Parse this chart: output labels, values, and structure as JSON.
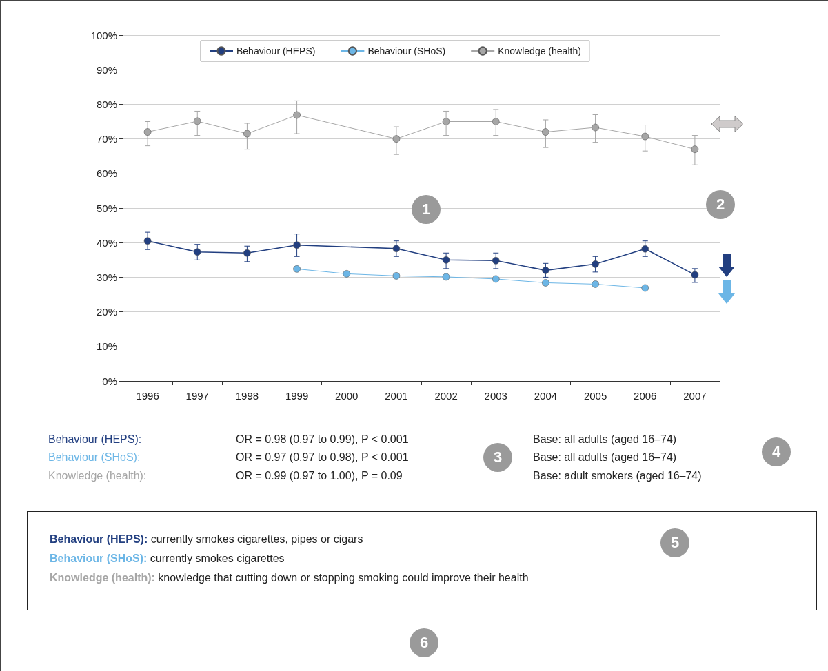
{
  "chart_data": {
    "type": "line",
    "categories": [
      "1996",
      "1997",
      "1998",
      "1999",
      "2000",
      "2001",
      "2002",
      "2003",
      "2004",
      "2005",
      "2006",
      "2007"
    ],
    "series": [
      {
        "name": "Behaviour (HEPS)",
        "color": "#223f80",
        "values": [
          40.5,
          37.3,
          37,
          39.3,
          null,
          38.3,
          35,
          34.8,
          32,
          33.8,
          38.2,
          30.7
        ],
        "errors": [
          [
            38,
            43
          ],
          [
            35,
            39.5
          ],
          [
            34.5,
            39
          ],
          [
            36,
            42.5
          ],
          null,
          [
            36,
            40.5
          ],
          [
            32.5,
            37
          ],
          [
            32.5,
            37
          ],
          [
            30,
            34
          ],
          [
            31.5,
            36
          ],
          [
            36,
            40.5
          ],
          [
            28.5,
            32.5
          ]
        ]
      },
      {
        "name": "Behaviour (SHoS)",
        "color": "#6cb6e6",
        "values": [
          null,
          null,
          null,
          32.4,
          31,
          30.4,
          30.1,
          29.5,
          28.4,
          28,
          26.9,
          null
        ]
      },
      {
        "name": "Knowledge (health)",
        "color": "#a6a6a6",
        "values": [
          72,
          75.1,
          71.5,
          76.9,
          null,
          70,
          75,
          75,
          72,
          73.3,
          70.7,
          67
        ],
        "errors": [
          [
            68,
            75
          ],
          [
            71,
            78
          ],
          [
            67,
            74.5
          ],
          [
            71.5,
            81
          ],
          null,
          [
            65.5,
            73.5
          ],
          [
            71,
            78
          ],
          [
            71,
            78.5
          ],
          [
            67.5,
            75.5
          ],
          [
            69,
            77
          ],
          [
            66.5,
            74
          ],
          [
            62.5,
            71
          ]
        ]
      }
    ],
    "ylim": [
      0,
      100
    ],
    "yticks": [
      {
        "value": 0,
        "label": "0%"
      },
      {
        "value": 10,
        "label": "10%"
      },
      {
        "value": 20,
        "label": "20%"
      },
      {
        "value": 30,
        "label": "30%"
      },
      {
        "value": 40,
        "label": "40%"
      },
      {
        "value": 50,
        "label": "50%"
      },
      {
        "value": 60,
        "label": "60%"
      },
      {
        "value": 70,
        "label": "70%"
      },
      {
        "value": 80,
        "label": "80%"
      },
      {
        "value": 90,
        "label": "90%"
      },
      {
        "value": 100,
        "label": "100%"
      }
    ],
    "grid": "y",
    "legend": "top",
    "marker": "circle",
    "line_style": "solid",
    "annotations": [
      "Behaviour (HEPS):",
      "OR = 0.98 (0.97 to 0.99), P < 0.001",
      "Base: all adults (aged 16–74)",
      "Behaviour (SHoS):",
      "OR = 0.97 (0.97 to 0.98), P < 0.001",
      "Base: all adults (aged 16–74)",
      "Knowledge (health):",
      "OR = 0.99 (0.97 to 1.00), P = 0.09",
      "Base: adult smokers (aged 16–74)",
      "Behaviour (HEPS):",
      "currently smokes cigarettes, pipes or cigars",
      "Behaviour (SHoS):",
      "currently smokes cigarettes",
      "Knowledge (health):",
      "knowledge that cutting down or stopping smoking could improve their health",
      "1",
      "2",
      "3",
      "4",
      "5",
      "6"
    ]
  }
}
